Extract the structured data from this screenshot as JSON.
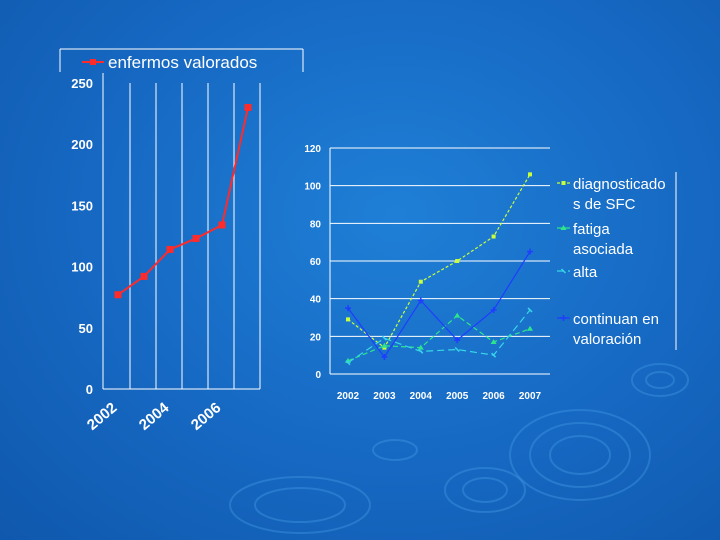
{
  "colors": {
    "background": "#1668c2",
    "left_series": "#ff2a2a",
    "diagnosticados": "#c8ff3c",
    "fatiga": "#2ee58c",
    "alta": "#38d6e8",
    "continuan": "#1f3cff"
  },
  "chart_data": [
    {
      "type": "line",
      "title": "",
      "legend": [
        "enfermos valorados"
      ],
      "x": [
        "2002",
        "2003",
        "2004",
        "2005",
        "2006",
        "2007"
      ],
      "x_tick_labels": [
        "2002",
        "2004",
        "2006"
      ],
      "series": [
        {
          "name": "enfermos valorados",
          "values": [
            77,
            92,
            114,
            123,
            134,
            230
          ]
        }
      ],
      "ylim": [
        0,
        250
      ],
      "y_ticks": [
        "0",
        "50",
        "100",
        "150",
        "200",
        "250"
      ],
      "grid": "vertical"
    },
    {
      "type": "line",
      "title": "",
      "x": [
        "2002",
        "2003",
        "2004",
        "2005",
        "2006",
        "2007"
      ],
      "series": [
        {
          "name": "diagnosticados de SFC",
          "legend_lines": [
            "diagnosticado",
            "s de SFC"
          ],
          "values": [
            29,
            14,
            49,
            60,
            73,
            106
          ]
        },
        {
          "name": "fatiga asociada",
          "legend_lines": [
            "fatiga",
            "asociada"
          ],
          "values": [
            7,
            15,
            14,
            31,
            17,
            24
          ]
        },
        {
          "name": "alta",
          "legend_lines": [
            "alta"
          ],
          "values": [
            6,
            19,
            12,
            13,
            10,
            34
          ]
        },
        {
          "name": "continuan en valoración",
          "legend_lines": [
            "continuan en",
            "valoración"
          ],
          "values": [
            35,
            9,
            39,
            18,
            34,
            65
          ]
        }
      ],
      "ylim": [
        0,
        120
      ],
      "y_ticks": [
        "0",
        "20",
        "40",
        "60",
        "80",
        "100",
        "120"
      ],
      "grid": "horizontal"
    }
  ]
}
